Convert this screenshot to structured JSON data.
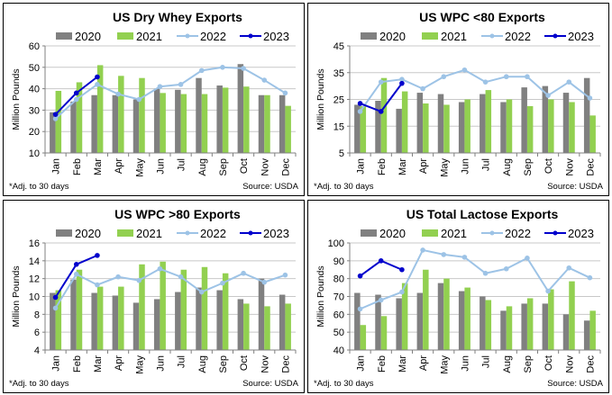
{
  "colors": {
    "2020": "#808080",
    "2021": "#92D050",
    "2022": "#9DC3E6",
    "2023": "#0000CC",
    "grid": "#C8C8C8",
    "axis": "#808080"
  },
  "chart_data": [
    {
      "type": "bar",
      "title": "US Dry Whey Exports",
      "xlabel": "",
      "ylabel": "Million Pounds",
      "ylim": [
        10,
        60
      ],
      "yticks": [
        10,
        20,
        30,
        40,
        50,
        60
      ],
      "grid": true,
      "legend": "top",
      "footnote": "*Adj. to 30 days",
      "source": "Source: USDA",
      "categories": [
        "Jan",
        "Feb",
        "Mar",
        "Apr",
        "May",
        "Jun",
        "Jul",
        "Aug",
        "Sep",
        "Oct",
        "Nov",
        "Dec"
      ],
      "series": [
        {
          "name": "2020",
          "kind": "bar",
          "values": [
            29,
            34,
            37,
            37,
            35,
            40,
            39.5,
            45,
            41.5,
            51.5,
            37,
            37
          ]
        },
        {
          "name": "2021",
          "kind": "bar",
          "values": [
            39,
            43,
            51,
            46,
            45,
            38,
            37.5,
            37.5,
            40.5,
            41,
            37,
            32
          ]
        },
        {
          "name": "2022",
          "kind": "line",
          "values": [
            26,
            35,
            42,
            37.5,
            35,
            41,
            42,
            48.5,
            50,
            49.5,
            44,
            38
          ]
        },
        {
          "name": "2023",
          "kind": "line",
          "values": [
            28,
            38,
            45.5
          ]
        }
      ]
    },
    {
      "type": "bar",
      "title": "US WPC <80 Exports",
      "xlabel": "",
      "ylabel": "Million Pounds",
      "ylim": [
        5,
        45
      ],
      "yticks": [
        5,
        15,
        25,
        35,
        45
      ],
      "grid": true,
      "legend": "top",
      "footnote": "*Adj. to 30 days",
      "source": "Source: USDA",
      "categories": [
        "Jan",
        "Feb",
        "Mar",
        "Apr",
        "May",
        "Jun",
        "Jul",
        "Aug",
        "Sep",
        "Oct",
        "Nov",
        "Dec"
      ],
      "series": [
        {
          "name": "2020",
          "kind": "bar",
          "values": [
            23,
            24.5,
            21.5,
            27.5,
            27,
            24,
            27,
            24,
            29.5,
            30,
            27.5,
            33
          ]
        },
        {
          "name": "2021",
          "kind": "bar",
          "values": [
            22.5,
            33,
            28,
            23.5,
            23,
            25,
            28.5,
            25,
            22.5,
            25,
            24,
            19
          ]
        },
        {
          "name": "2022",
          "kind": "line",
          "values": [
            20.5,
            31.5,
            32.5,
            29,
            33.5,
            36,
            31.5,
            33.5,
            33.5,
            26.5,
            31.5,
            25.5
          ]
        },
        {
          "name": "2023",
          "kind": "line",
          "values": [
            23.5,
            20.5,
            31
          ]
        }
      ]
    },
    {
      "type": "bar",
      "title": "US WPC >80 Exports",
      "xlabel": "",
      "ylabel": "Million Pounds",
      "ylim": [
        4,
        16
      ],
      "yticks": [
        4,
        6,
        8,
        10,
        12,
        14,
        16
      ],
      "grid": true,
      "legend": "top",
      "footnote": "*Adj. to 30 days",
      "source": "Source: USDA",
      "categories": [
        "Jan",
        "Feb",
        "Mar",
        "Apr",
        "May",
        "Jun",
        "Jul",
        "Aug",
        "Sep",
        "Oct",
        "Nov",
        "Dec"
      ],
      "series": [
        {
          "name": "2020",
          "kind": "bar",
          "values": [
            10.4,
            11.9,
            10.4,
            10.1,
            9.3,
            9.7,
            10.5,
            11,
            10.7,
            9.7,
            12,
            10.2
          ]
        },
        {
          "name": "2021",
          "kind": "bar",
          "values": [
            10.7,
            13,
            11.1,
            11.1,
            13.6,
            13.9,
            13,
            13.3,
            12.6,
            9.2,
            8.9,
            9.2
          ]
        },
        {
          "name": "2022",
          "kind": "line",
          "values": [
            8.7,
            12.5,
            11.3,
            12.2,
            11.8,
            13.1,
            12.2,
            10.5,
            11.5,
            12.6,
            11.6,
            12.4
          ]
        },
        {
          "name": "2023",
          "kind": "line",
          "values": [
            9.9,
            13.6,
            14.6
          ]
        }
      ]
    },
    {
      "type": "bar",
      "title": "US Total Lactose Exports",
      "xlabel": "",
      "ylabel": "Million Pounds",
      "ylim": [
        40,
        100
      ],
      "yticks": [
        40,
        50,
        60,
        70,
        80,
        90,
        100
      ],
      "grid": true,
      "legend": "top",
      "footnote": "*Adj. to 30 days",
      "source": "Source: USDA",
      "categories": [
        "Jan",
        "Feb",
        "Mar",
        "Apr",
        "May",
        "Jun",
        "Jul",
        "Aug",
        "Sep",
        "Oct",
        "Nov",
        "Dec"
      ],
      "series": [
        {
          "name": "2020",
          "kind": "bar",
          "values": [
            72,
            71,
            69,
            72,
            77.5,
            73,
            70,
            62,
            66,
            66,
            60,
            56.5
          ]
        },
        {
          "name": "2021",
          "kind": "bar",
          "values": [
            54,
            59,
            77.5,
            85,
            80,
            75,
            68,
            64.5,
            69,
            74,
            78.5,
            62
          ]
        },
        {
          "name": "2022",
          "kind": "line",
          "values": [
            63,
            68,
            72.5,
            96,
            93.5,
            92,
            83,
            85.5,
            91.5,
            73,
            86,
            80.5
          ]
        },
        {
          "name": "2023",
          "kind": "line",
          "values": [
            81.5,
            90,
            85
          ]
        }
      ]
    }
  ]
}
